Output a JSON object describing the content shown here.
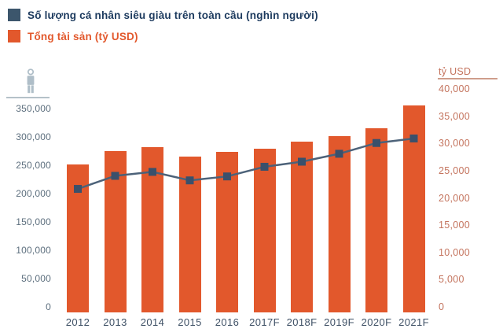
{
  "legend": {
    "series1": {
      "label": "Số lượng cá nhân siêu giàu trên toàn cầu (nghìn người)",
      "color": "#3c566c",
      "text_color": "#1c3a5e"
    },
    "series2": {
      "label": "Tổng tài sản (tỷ USD)",
      "color": "#e2582c",
      "text_color": "#e2582c"
    }
  },
  "axes": {
    "left": {
      "icon": "person-icon",
      "tick_labels": [
        "350,000",
        "300,000",
        "250,000",
        "200,000",
        "150,000",
        "100,000",
        "50,000",
        "0"
      ]
    },
    "right": {
      "title": "tỷ USD",
      "tick_labels": [
        "40,000",
        "35,000",
        "30,000",
        "25,000",
        "20,000",
        "15,000",
        "10,000",
        "5,000",
        "0"
      ]
    }
  },
  "chart_data": {
    "type": "bar",
    "subtype": "dual-axis combo: vertical bars (right axis) + line with square markers (left axis)",
    "title": "",
    "categories": [
      "2012",
      "2013",
      "2014",
      "2015",
      "2016",
      "2017F",
      "2018F",
      "2019F",
      "2020F",
      "2021F"
    ],
    "series": [
      {
        "name": "Số lượng cá nhân siêu giàu trên toàn cầu (nghìn người)",
        "type": "line",
        "axis": "left",
        "unit": "nghìn người",
        "marker": "square",
        "color": "#3a506b",
        "line_color": "#4c6279",
        "values": [
          218000,
          241000,
          248000,
          233000,
          240000,
          257000,
          266000,
          280000,
          299000,
          307000
        ]
      },
      {
        "name": "Tổng tài sản (tỷ USD)",
        "type": "bar",
        "axis": "right",
        "unit": "tỷ USD",
        "color": "#e2582c",
        "values": [
          27200,
          29600,
          30300,
          28600,
          29500,
          30000,
          31300,
          32400,
          33800,
          38000
        ]
      }
    ],
    "left_axis": {
      "label": "nghìn người",
      "range": [
        0,
        350000
      ],
      "tick_step": 50000,
      "tick_values": [
        350000,
        300000,
        250000,
        200000,
        150000,
        100000,
        50000,
        0
      ]
    },
    "right_axis": {
      "label": "tỷ USD",
      "range": [
        0,
        40000
      ],
      "tick_step": 5000,
      "tick_values": [
        40000,
        35000,
        30000,
        25000,
        20000,
        15000,
        10000,
        5000,
        0
      ]
    },
    "legend_position": "top-left",
    "grid": false
  },
  "colors": {
    "bar": "#e2582c",
    "line": "#4c6279",
    "marker": "#3a506b",
    "left_tick_text": "#5d6f7e",
    "right_tick_text": "#c4745e",
    "x_label_text": "#3f5166",
    "left_rule": "#b5c1c9",
    "right_rule": "#cf9d8b",
    "icon": "#afbec8"
  }
}
